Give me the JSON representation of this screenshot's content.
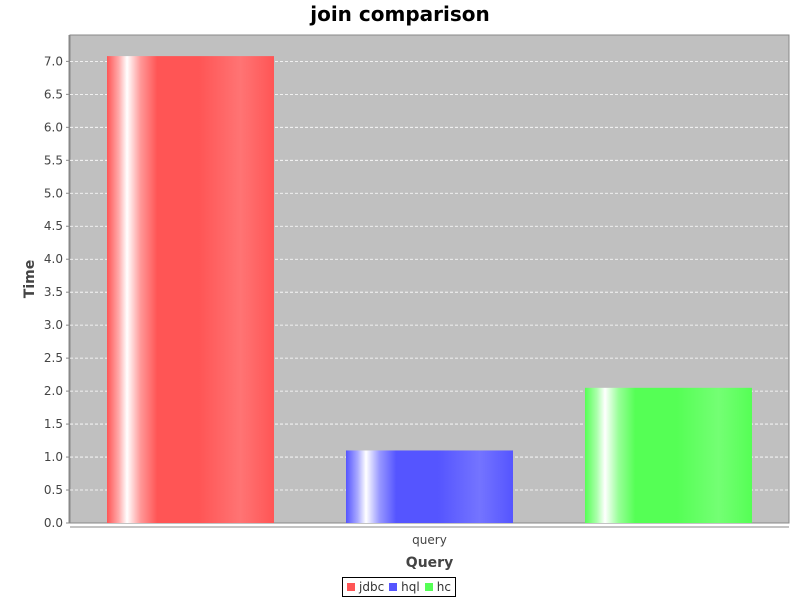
{
  "chart_data": {
    "type": "bar",
    "title": "join comparison",
    "xlabel": "Query",
    "ylabel": "Time",
    "categories": [
      "query"
    ],
    "series": [
      {
        "name": "jdbc",
        "values": [
          7.08
        ],
        "color": "#ff5555"
      },
      {
        "name": "hql",
        "values": [
          1.1
        ],
        "color": "#5555ff"
      },
      {
        "name": "hc",
        "values": [
          2.05
        ],
        "color": "#55ff55"
      }
    ],
    "ylim": [
      0,
      7.4
    ],
    "yticks": [
      "0.0",
      "0.5",
      "1.0",
      "1.5",
      "2.0",
      "2.5",
      "3.0",
      "3.5",
      "4.0",
      "4.5",
      "5.0",
      "5.5",
      "6.0",
      "6.5",
      "7.0"
    ],
    "grid": true,
    "plot_background": "#c0c0c0",
    "gridline_color": "#ffffff",
    "legend_position": "bottom"
  }
}
